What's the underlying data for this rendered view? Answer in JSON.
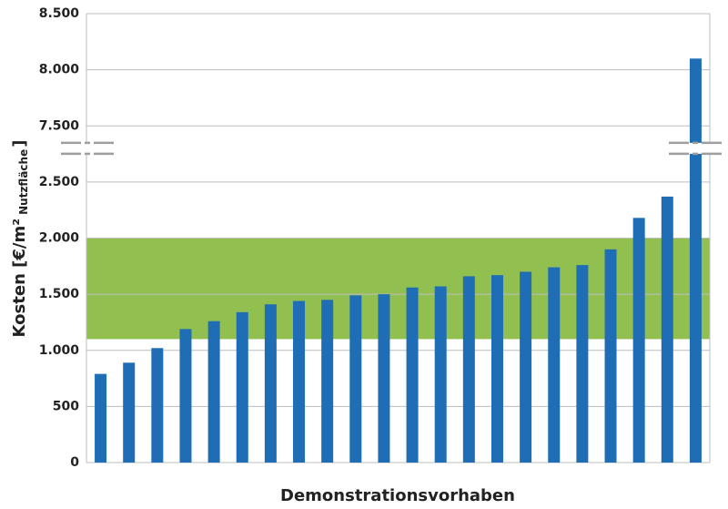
{
  "chart_data": {
    "type": "bar",
    "xlabel": "Demonstrationsvorhaben",
    "ylabel": {
      "main": "Kosten [€/m²",
      "subscript": "Nutzfläche",
      "close": "]"
    },
    "categories": [
      null,
      null,
      null,
      null,
      null,
      null,
      null,
      null,
      null,
      null,
      null,
      null,
      null,
      null,
      null,
      null,
      null,
      null,
      null,
      null,
      null,
      null
    ],
    "values": [
      790,
      890,
      1020,
      1190,
      1260,
      1340,
      1410,
      1440,
      1450,
      1490,
      1500,
      1560,
      1570,
      1660,
      1670,
      1700,
      1740,
      1760,
      1900,
      2180,
      2370,
      8100
    ],
    "color": "#1f6db5",
    "ylim": [
      0,
      8500
    ],
    "axis_break": [
      2800,
      7300
    ],
    "yticks": [
      0,
      500,
      {
        "value": 1000,
        "label": "1.000"
      },
      {
        "value": 1500,
        "label": "1.500"
      },
      {
        "value": 2000,
        "label": "2.000"
      },
      {
        "value": 2500,
        "label": "2.500"
      },
      {
        "value": 7500,
        "label": "7.500"
      },
      {
        "value": 8000,
        "label": "8.000"
      },
      {
        "value": 8500,
        "label": "8.500"
      }
    ],
    "highlight_range": [
      1100,
      2000
    ],
    "highlight_color": "#92c050",
    "grid": true
  }
}
